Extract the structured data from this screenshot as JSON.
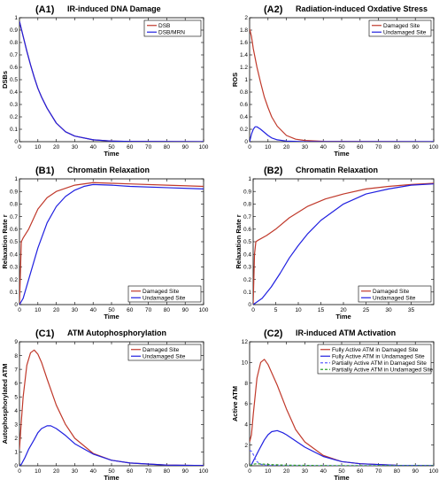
{
  "chart_data": [
    {
      "id": "(A1)",
      "title": "IR-induced DNA Damage",
      "type": "line",
      "xlabel": "Time",
      "ylabel": "DSBs",
      "xlim": [
        0,
        100
      ],
      "ylim": [
        0,
        1
      ],
      "xticks": [
        0,
        10,
        20,
        30,
        40,
        50,
        60,
        70,
        80,
        90,
        100
      ],
      "yticks": [
        0,
        0.1,
        0.2,
        0.3,
        0.4,
        0.5,
        0.6,
        0.7,
        0.8,
        0.9,
        1
      ],
      "legend": "top-right",
      "series": [
        {
          "name": "DSB",
          "color": "#c0392b",
          "x": [
            0,
            2,
            4,
            6,
            8,
            10,
            12,
            15,
            20,
            25,
            30,
            40,
            50,
            60,
            100
          ],
          "y": [
            0.97,
            0.85,
            0.73,
            0.62,
            0.52,
            0.43,
            0.36,
            0.27,
            0.15,
            0.08,
            0.045,
            0.015,
            0.005,
            0.002,
            0
          ]
        },
        {
          "name": "DSB/MRN",
          "color": "#2020e0",
          "x": [
            0,
            2,
            4,
            6,
            8,
            10,
            12,
            15,
            20,
            25,
            30,
            40,
            50,
            60,
            100
          ],
          "y": [
            0.97,
            0.85,
            0.73,
            0.62,
            0.52,
            0.43,
            0.36,
            0.27,
            0.15,
            0.08,
            0.045,
            0.015,
            0.005,
            0.002,
            0
          ]
        }
      ]
    },
    {
      "id": "(A2)",
      "title": "Radiation-induced Oxdative Stress",
      "type": "line",
      "xlabel": "Time",
      "ylabel": "ROS",
      "xlim": [
        0,
        100
      ],
      "ylim": [
        0,
        2
      ],
      "xticks": [
        0,
        10,
        20,
        30,
        40,
        50,
        60,
        70,
        80,
        90,
        100
      ],
      "yticks": [
        0,
        0.2,
        0.4,
        0.6,
        0.8,
        1,
        1.2,
        1.4,
        1.6,
        1.8,
        2
      ],
      "legend": "top-right",
      "series": [
        {
          "name": "Damaged Site",
          "color": "#c0392b",
          "x": [
            0,
            1,
            2,
            4,
            6,
            8,
            10,
            12,
            15,
            20,
            25,
            30,
            40,
            100
          ],
          "y": [
            1.82,
            1.7,
            1.5,
            1.2,
            0.95,
            0.72,
            0.55,
            0.4,
            0.25,
            0.1,
            0.04,
            0.02,
            0.005,
            0
          ]
        },
        {
          "name": "Undamaged Site",
          "color": "#2020e0",
          "x": [
            0,
            1,
            2,
            3,
            4,
            6,
            8,
            10,
            12,
            15,
            20,
            30,
            100
          ],
          "y": [
            0,
            0.12,
            0.2,
            0.24,
            0.24,
            0.2,
            0.15,
            0.1,
            0.06,
            0.03,
            0.01,
            0,
            0
          ]
        }
      ]
    },
    {
      "id": "(B1)",
      "title": "Chromatin Relaxation",
      "type": "line",
      "xlabel": "Time",
      "ylabel": "Relaxation Rate r",
      "xlim": [
        0,
        100
      ],
      "ylim": [
        0,
        1
      ],
      "xticks": [
        0,
        10,
        20,
        30,
        40,
        50,
        60,
        70,
        80,
        90,
        100
      ],
      "yticks": [
        0,
        0.1,
        0.2,
        0.3,
        0.4,
        0.5,
        0.6,
        0.7,
        0.8,
        0.9,
        1
      ],
      "legend": "bottom-right",
      "series": [
        {
          "name": "Damaged Site",
          "color": "#c0392b",
          "x": [
            0,
            1,
            2,
            5,
            10,
            15,
            20,
            30,
            40,
            50,
            60,
            80,
            100
          ],
          "y": [
            0,
            0.5,
            0.53,
            0.6,
            0.76,
            0.85,
            0.9,
            0.95,
            0.97,
            0.965,
            0.96,
            0.95,
            0.94
          ]
        },
        {
          "name": "Undamaged Site",
          "color": "#2020e0",
          "x": [
            0,
            2,
            5,
            10,
            15,
            20,
            25,
            30,
            35,
            40,
            50,
            60,
            80,
            100
          ],
          "y": [
            0,
            0.05,
            0.2,
            0.45,
            0.65,
            0.78,
            0.86,
            0.91,
            0.94,
            0.955,
            0.95,
            0.94,
            0.93,
            0.92
          ]
        }
      ]
    },
    {
      "id": "(B2)",
      "title": "Chromatin Relaxation",
      "type": "line",
      "xlabel": "Time",
      "ylabel": "Relaxation Rate r",
      "xlim": [
        0,
        40
      ],
      "ylim": [
        0,
        1
      ],
      "xticks": [
        0,
        5,
        10,
        15,
        20,
        25,
        30,
        35
      ],
      "yticks": [
        0,
        0.1,
        0.2,
        0.3,
        0.4,
        0.5,
        0.6,
        0.7,
        0.8,
        0.9,
        1
      ],
      "legend": "bottom-right",
      "series": [
        {
          "name": "Damaged Site",
          "color": "#c0392b",
          "x": [
            0,
            0.3,
            0.6,
            1,
            3,
            5,
            8,
            12,
            16,
            20,
            25,
            30,
            35,
            40
          ],
          "y": [
            0,
            0.4,
            0.5,
            0.51,
            0.55,
            0.6,
            0.69,
            0.78,
            0.84,
            0.88,
            0.92,
            0.94,
            0.955,
            0.965
          ]
        },
        {
          "name": "Undamaged Site",
          "color": "#2020e0",
          "x": [
            0,
            2,
            4,
            6,
            8,
            10,
            12,
            15,
            20,
            25,
            30,
            35,
            40
          ],
          "y": [
            0,
            0.05,
            0.14,
            0.25,
            0.37,
            0.47,
            0.56,
            0.67,
            0.8,
            0.88,
            0.92,
            0.95,
            0.96
          ]
        }
      ]
    },
    {
      "id": "(C1)",
      "title": "ATM Autophosphorylation",
      "type": "line",
      "xlabel": "Time",
      "ylabel": "Autophosphorylated ATM",
      "xlim": [
        0,
        100
      ],
      "ylim": [
        0,
        9
      ],
      "xticks": [
        0,
        10,
        20,
        30,
        40,
        50,
        60,
        70,
        80,
        90,
        100
      ],
      "yticks": [
        0,
        1,
        2,
        3,
        4,
        5,
        6,
        7,
        8,
        9
      ],
      "legend": "top-right",
      "series": [
        {
          "name": "Damaged Site",
          "color": "#c0392b",
          "x": [
            0,
            1,
            2,
            4,
            6,
            8,
            10,
            12,
            15,
            20,
            25,
            30,
            40,
            50,
            60,
            80,
            100
          ],
          "y": [
            1.2,
            3.2,
            5,
            7.3,
            8.2,
            8.4,
            8.1,
            7.5,
            6.3,
            4.4,
            3,
            2,
            0.9,
            0.4,
            0.2,
            0.05,
            0.02
          ]
        },
        {
          "name": "Undamaged Site",
          "color": "#2020e0",
          "x": [
            0,
            1,
            3,
            5,
            8,
            10,
            12,
            15,
            17,
            20,
            25,
            30,
            40,
            50,
            60,
            80,
            100
          ],
          "y": [
            0,
            0.1,
            0.6,
            1.2,
            1.9,
            2.4,
            2.7,
            2.9,
            2.9,
            2.7,
            2.2,
            1.6,
            0.85,
            0.4,
            0.2,
            0.05,
            0.02
          ]
        }
      ]
    },
    {
      "id": "(C2)",
      "title": "IR-induced ATM Activation",
      "type": "line",
      "xlabel": "Time",
      "ylabel": "Active ATM",
      "xlim": [
        0,
        100
      ],
      "ylim": [
        0,
        12
      ],
      "xticks": [
        0,
        10,
        20,
        30,
        40,
        50,
        60,
        70,
        80,
        90,
        100
      ],
      "yticks": [
        0,
        2,
        4,
        6,
        8,
        10,
        12
      ],
      "legend": "top-right",
      "series": [
        {
          "name": "Fully Active ATM in Damaged Site",
          "color": "#c0392b",
          "x": [
            0,
            1,
            2,
            4,
            6,
            8,
            10,
            12,
            15,
            20,
            25,
            30,
            40,
            50,
            60,
            80,
            100
          ],
          "y": [
            2.3,
            3,
            5,
            8.5,
            10,
            10.3,
            9.8,
            9,
            7.8,
            5.5,
            3.5,
            2.3,
            1,
            0.4,
            0.2,
            0.05,
            0.02
          ]
        },
        {
          "name": "Fully Active ATM in Undamaged Site",
          "color": "#2020e0",
          "x": [
            0,
            1,
            3,
            5,
            8,
            10,
            12,
            15,
            18,
            20,
            25,
            30,
            40,
            50,
            60,
            80,
            100
          ],
          "y": [
            0,
            0.1,
            0.8,
            1.5,
            2.5,
            3,
            3.3,
            3.4,
            3.2,
            3,
            2.4,
            1.8,
            0.9,
            0.4,
            0.2,
            0.05,
            0.02
          ]
        },
        {
          "name": "Partially Active ATM in Damaged Site",
          "color": "#6060ff",
          "dash": "3,2",
          "x": [
            0,
            1,
            2,
            3,
            4,
            6,
            8,
            10,
            15,
            20,
            40,
            100
          ],
          "y": [
            1.5,
            1.4,
            1.1,
            0.7,
            0.4,
            0.15,
            0.07,
            0.03,
            0.01,
            0,
            0,
            0
          ]
        },
        {
          "name": "Partially Active ATM in Undamaged Site",
          "color": "#2ca02c",
          "dash": "3,2",
          "x": [
            0,
            2,
            4,
            6,
            8,
            10,
            20,
            40,
            100
          ],
          "y": [
            0,
            0.15,
            0.2,
            0.18,
            0.15,
            0.12,
            0.06,
            0.02,
            0
          ]
        }
      ]
    }
  ]
}
